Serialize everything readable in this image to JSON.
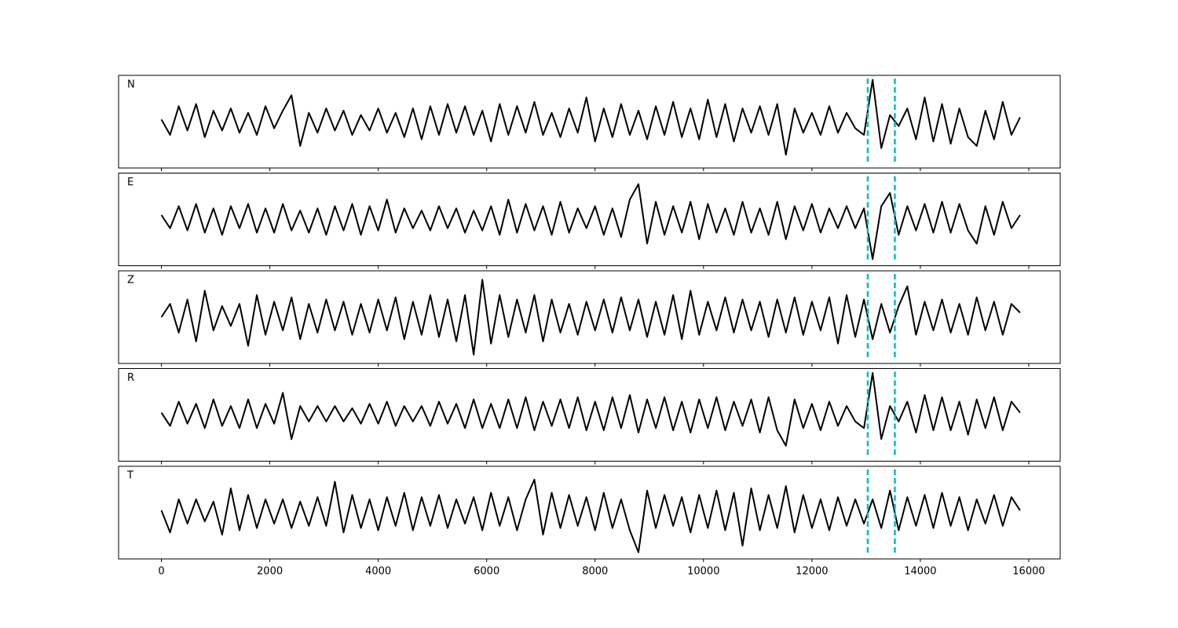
{
  "chart_data": {
    "type": "line",
    "x": [
      0,
      160,
      320,
      480,
      640,
      800,
      960,
      1120,
      1280,
      1440,
      1600,
      1760,
      1920,
      2080,
      2240,
      2400,
      2560,
      2720,
      2880,
      3040,
      3200,
      3360,
      3520,
      3680,
      3840,
      4000,
      4160,
      4320,
      4480,
      4640,
      4800,
      4960,
      5120,
      5280,
      5440,
      5600,
      5760,
      5920,
      6080,
      6240,
      6400,
      6560,
      6720,
      6880,
      7040,
      7200,
      7360,
      7520,
      7680,
      7840,
      8000,
      8160,
      8320,
      8480,
      8640,
      8800,
      8960,
      9120,
      9280,
      9440,
      9600,
      9760,
      9920,
      10080,
      10240,
      10400,
      10560,
      10720,
      10880,
      11040,
      11200,
      11360,
      11520,
      11680,
      11840,
      12000,
      12160,
      12320,
      12480,
      12640,
      12800,
      12960,
      13120,
      13280,
      13440,
      13600,
      13760,
      13920,
      14080,
      14240,
      14400,
      14560,
      14720,
      14880,
      15040,
      15200,
      15360,
      15520,
      15680,
      15840
    ],
    "series": [
      {
        "name": "N",
        "color": "#000000",
        "values": [
          0.05,
          -0.3,
          0.35,
          -0.2,
          0.4,
          -0.35,
          0.25,
          -0.2,
          0.3,
          -0.25,
          0.2,
          -0.3,
          0.35,
          -0.15,
          0.25,
          0.6,
          -0.55,
          0.2,
          -0.25,
          0.3,
          -0.2,
          0.25,
          -0.3,
          0.15,
          -0.2,
          0.3,
          -0.25,
          0.2,
          -0.35,
          0.3,
          -0.4,
          0.35,
          -0.3,
          0.4,
          -0.25,
          0.35,
          -0.3,
          0.25,
          -0.45,
          0.4,
          -0.3,
          0.35,
          -0.25,
          0.45,
          -0.3,
          0.2,
          -0.35,
          0.3,
          -0.25,
          0.55,
          -0.45,
          0.3,
          -0.35,
          0.4,
          -0.3,
          0.25,
          -0.4,
          0.35,
          -0.3,
          0.45,
          -0.35,
          0.3,
          -0.4,
          0.5,
          -0.35,
          0.4,
          -0.45,
          0.3,
          -0.25,
          0.35,
          -0.3,
          0.4,
          -0.75,
          0.3,
          -0.25,
          0.2,
          -0.3,
          0.35,
          -0.25,
          0.2,
          -0.15,
          -0.3,
          0.95,
          -0.6,
          0.15,
          -0.1,
          0.3,
          -0.4,
          0.55,
          -0.45,
          0.4,
          -0.5,
          0.3,
          -0.35,
          -0.55,
          0.25,
          -0.4,
          0.45,
          -0.3,
          0.1
        ]
      },
      {
        "name": "E",
        "color": "#000000",
        "values": [
          0.1,
          -0.2,
          0.3,
          -0.25,
          0.35,
          -0.3,
          0.25,
          -0.35,
          0.3,
          -0.2,
          0.35,
          -0.3,
          0.25,
          -0.3,
          0.35,
          -0.25,
          0.2,
          -0.3,
          0.25,
          -0.35,
          0.3,
          -0.25,
          0.35,
          -0.35,
          0.3,
          -0.25,
          0.45,
          -0.3,
          0.25,
          -0.2,
          0.2,
          -0.25,
          0.3,
          -0.2,
          0.25,
          -0.3,
          0.2,
          -0.25,
          0.3,
          -0.35,
          0.45,
          -0.3,
          0.35,
          -0.25,
          0.3,
          -0.35,
          0.4,
          -0.3,
          0.25,
          -0.2,
          0.3,
          -0.35,
          0.25,
          -0.4,
          0.45,
          0.8,
          -0.55,
          0.4,
          -0.35,
          0.3,
          -0.3,
          0.4,
          -0.45,
          0.35,
          -0.3,
          0.25,
          -0.35,
          0.4,
          -0.3,
          0.25,
          -0.35,
          0.4,
          -0.45,
          0.3,
          -0.25,
          0.35,
          -0.3,
          0.25,
          -0.2,
          0.3,
          -0.2,
          0.25,
          -0.9,
          0.3,
          0.6,
          -0.35,
          0.3,
          -0.25,
          0.35,
          -0.3,
          0.4,
          -0.3,
          0.35,
          -0.25,
          -0.55,
          0.3,
          -0.35,
          0.4,
          -0.2,
          0.1
        ]
      },
      {
        "name": "Z",
        "color": "#000000",
        "values": [
          0.0,
          0.3,
          -0.35,
          0.4,
          -0.55,
          0.6,
          -0.3,
          0.25,
          -0.2,
          0.3,
          -0.65,
          0.5,
          -0.4,
          0.35,
          -0.3,
          0.45,
          -0.5,
          0.3,
          -0.35,
          0.4,
          -0.3,
          0.35,
          -0.4,
          0.3,
          -0.35,
          0.4,
          -0.3,
          0.45,
          -0.5,
          0.35,
          -0.4,
          0.5,
          -0.45,
          0.4,
          -0.55,
          0.5,
          -0.85,
          0.85,
          -0.6,
          0.5,
          -0.45,
          0.4,
          -0.35,
          0.5,
          -0.55,
          0.4,
          -0.35,
          0.3,
          -0.4,
          0.35,
          -0.3,
          0.4,
          -0.35,
          0.45,
          -0.3,
          0.4,
          -0.45,
          0.35,
          -0.4,
          0.5,
          -0.5,
          0.6,
          -0.4,
          0.35,
          -0.3,
          0.45,
          -0.35,
          0.4,
          -0.3,
          0.35,
          -0.45,
          0.4,
          -0.35,
          0.45,
          -0.4,
          0.35,
          -0.3,
          0.45,
          -0.6,
          0.5,
          -0.45,
          0.4,
          -0.5,
          0.3,
          -0.35,
          0.25,
          0.7,
          -0.4,
          0.35,
          -0.3,
          0.4,
          -0.35,
          0.3,
          -0.4,
          0.45,
          -0.3,
          0.35,
          -0.4,
          0.3,
          0.1
        ]
      },
      {
        "name": "R",
        "color": "#000000",
        "values": [
          0.05,
          -0.25,
          0.3,
          -0.2,
          0.25,
          -0.3,
          0.35,
          -0.25,
          0.2,
          -0.3,
          0.35,
          -0.3,
          0.25,
          -0.2,
          0.5,
          -0.55,
          0.2,
          -0.15,
          0.2,
          -0.15,
          0.2,
          -0.15,
          0.15,
          -0.2,
          0.25,
          -0.2,
          0.3,
          -0.25,
          0.2,
          -0.15,
          0.2,
          -0.25,
          0.3,
          -0.2,
          0.25,
          -0.3,
          0.35,
          -0.3,
          0.25,
          -0.3,
          0.35,
          -0.3,
          0.4,
          -0.35,
          0.3,
          -0.25,
          0.35,
          -0.3,
          0.4,
          -0.35,
          0.3,
          -0.35,
          0.4,
          -0.3,
          0.45,
          -0.4,
          0.35,
          -0.3,
          0.4,
          -0.35,
          0.3,
          -0.4,
          0.35,
          -0.3,
          0.4,
          -0.35,
          0.3,
          -0.25,
          0.35,
          -0.4,
          0.4,
          -0.35,
          -0.7,
          0.35,
          -0.3,
          0.25,
          -0.35,
          0.3,
          -0.25,
          0.2,
          -0.15,
          -0.3,
          0.95,
          -0.55,
          0.2,
          -0.15,
          0.3,
          -0.4,
          0.45,
          -0.35,
          0.4,
          -0.35,
          0.3,
          -0.45,
          0.35,
          -0.3,
          0.4,
          -0.35,
          0.3,
          0.05
        ]
      },
      {
        "name": "T",
        "color": "#000000",
        "values": [
          0.05,
          -0.45,
          0.3,
          -0.25,
          0.3,
          -0.2,
          0.25,
          -0.5,
          0.55,
          -0.4,
          0.4,
          -0.35,
          0.3,
          -0.25,
          0.3,
          -0.35,
          0.25,
          -0.3,
          0.35,
          -0.3,
          0.7,
          -0.45,
          0.4,
          -0.35,
          0.3,
          -0.4,
          0.35,
          -0.3,
          0.45,
          -0.4,
          0.35,
          -0.3,
          0.4,
          -0.35,
          0.3,
          -0.25,
          0.35,
          -0.4,
          0.45,
          -0.3,
          0.35,
          -0.4,
          0.3,
          0.75,
          -0.5,
          0.45,
          -0.35,
          0.4,
          -0.3,
          0.35,
          -0.4,
          0.45,
          -0.35,
          0.3,
          -0.4,
          -0.9,
          0.5,
          -0.35,
          0.4,
          -0.3,
          0.35,
          -0.45,
          0.4,
          -0.35,
          0.5,
          -0.4,
          0.45,
          -0.75,
          0.55,
          -0.4,
          0.4,
          -0.35,
          0.6,
          -0.45,
          0.4,
          -0.35,
          0.3,
          -0.4,
          0.35,
          -0.3,
          0.3,
          -0.25,
          0.3,
          -0.35,
          0.5,
          -0.4,
          0.35,
          -0.3,
          0.4,
          -0.35,
          0.45,
          -0.3,
          0.35,
          -0.4,
          0.3,
          -0.25,
          0.4,
          -0.3,
          0.35,
          0.05
        ]
      }
    ],
    "xlim": [
      -790,
      16580
    ],
    "xticks": [
      0,
      2000,
      4000,
      6000,
      8000,
      10000,
      12000,
      14000,
      16000
    ],
    "ylim": [
      -1.05,
      1.05
    ],
    "vlines": [
      13030,
      13530
    ],
    "vline_color": "#00bfbf"
  }
}
